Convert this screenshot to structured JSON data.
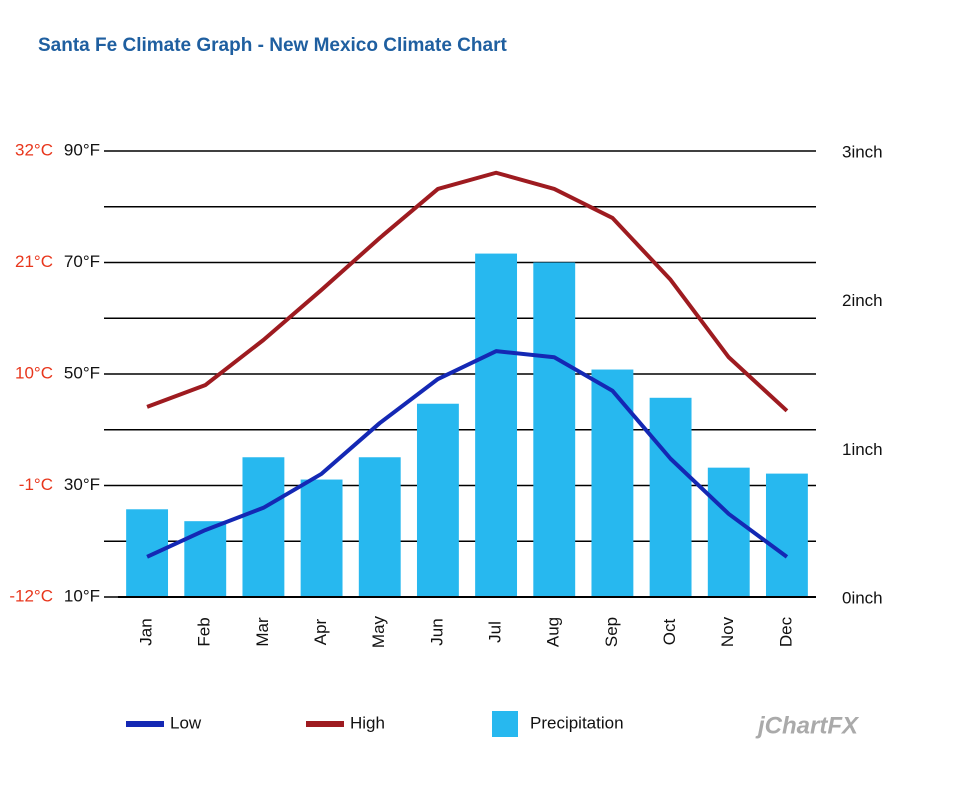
{
  "chart_data": {
    "type": "combo",
    "title": "Santa Fe Climate Graph - New Mexico Climate Chart",
    "categories": [
      "Jan",
      "Feb",
      "Mar",
      "Apr",
      "May",
      "Jun",
      "Jul",
      "Aug",
      "Sep",
      "Oct",
      "Nov",
      "Dec"
    ],
    "series": [
      {
        "name": "Low",
        "type": "line",
        "color": "#1428b4",
        "values": [
          17.2,
          22.0,
          26.0,
          32.1,
          41.2,
          49.1,
          54.1,
          53.0,
          47.0,
          34.8,
          24.9,
          17.2
        ]
      },
      {
        "name": "High",
        "type": "line",
        "color": "#9e1b20",
        "values": [
          44.1,
          48.0,
          56.1,
          65.1,
          74.4,
          83.2,
          86.1,
          83.2,
          78.0,
          66.9,
          53.0,
          43.4
        ]
      },
      {
        "name": "Precipitation",
        "type": "bar",
        "axis": "y2",
        "color": "#27b8ef",
        "values": [
          0.59,
          0.51,
          0.94,
          0.79,
          0.94,
          1.3,
          2.31,
          2.25,
          1.53,
          1.34,
          0.87,
          0.83
        ]
      }
    ],
    "ylim": [
      10,
      90
    ],
    "yticks": [
      {
        "value": 10,
        "label": "10°F"
      },
      {
        "value": 30,
        "label": "30°F"
      },
      {
        "value": 50,
        "label": "50°F"
      },
      {
        "value": 70,
        "label": "70°F"
      },
      {
        "value": 90,
        "label": "90°F"
      }
    ],
    "minor_yticks": [
      20,
      40,
      60,
      80
    ],
    "celsius_ticks": [
      {
        "value": 10,
        "label": "-12°C"
      },
      {
        "value": 30,
        "label": "-1°C"
      },
      {
        "value": 50,
        "label": "10°C"
      },
      {
        "value": 70,
        "label": "21°C"
      },
      {
        "value": 90,
        "label": "32°C"
      }
    ],
    "y2lim": [
      0,
      3
    ],
    "y2ticks": [
      {
        "value": 0,
        "label": "0inch"
      },
      {
        "value": 1,
        "label": "1inch"
      },
      {
        "value": 2,
        "label": "2inch"
      },
      {
        "value": 3,
        "label": "3inch"
      }
    ],
    "grid": true,
    "legend": "bottom",
    "watermark": "jChartFX"
  }
}
